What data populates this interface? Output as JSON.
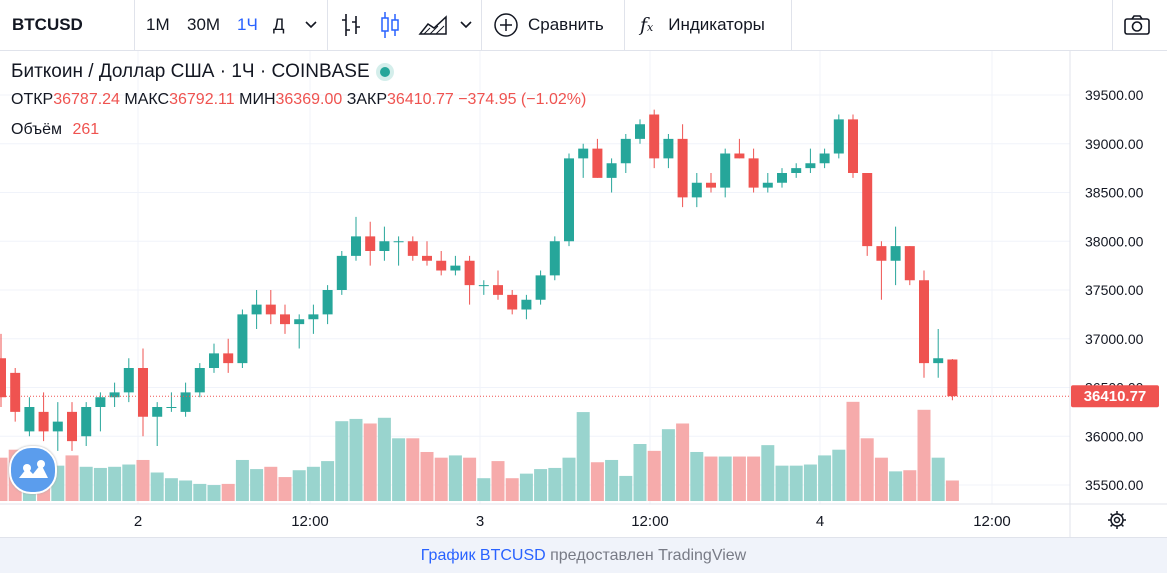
{
  "toolbar": {
    "symbol": "BTCUSD",
    "intervals": [
      "1М",
      "30М",
      "1Ч",
      "Д"
    ],
    "active_interval": "1Ч",
    "compare_label": "Сравнить",
    "indicators_label": "Индикаторы"
  },
  "legend": {
    "title": "Биткоин / Доллар США · 1Ч · COINBASE",
    "open_label": "ОТКР",
    "open": "36787.24",
    "high_label": "МАКС",
    "high": "36792.11",
    "low_label": "МИН",
    "low": "36369.00",
    "close_label": "ЗАКР",
    "close": "36410.77",
    "change": "−374.95 (−1.02%)",
    "volume_label": "Объём",
    "volume": "261"
  },
  "price_axis": {
    "labels": [
      "39500.00",
      "39000.00",
      "38500.00",
      "38000.00",
      "37500.00",
      "37000.00",
      "36500.00",
      "36000.00",
      "35500.00"
    ],
    "last_price": "36410.77"
  },
  "time_axis": {
    "labels": [
      "2",
      "12:00",
      "3",
      "12:00",
      "4",
      "12:00"
    ]
  },
  "footer": {
    "link_text": "График BTCUSD",
    "rest_text": " предоставлен TradingView"
  },
  "colors": {
    "up": "#26a69a",
    "down": "#ef5350",
    "up_volume": "#99d4ce",
    "down_volume": "#f6abab",
    "accent": "#2962ff"
  },
  "chart_data": {
    "type": "candlestick",
    "interval": "1H",
    "ylim": [
      35300,
      39800
    ],
    "candles": [
      {
        "o": 36800,
        "h": 37050,
        "l": 36300,
        "c": 36400,
        "v": 0.38
      },
      {
        "o": 36650,
        "h": 36700,
        "l": 36150,
        "c": 36250,
        "v": 0.45
      },
      {
        "o": 36050,
        "h": 36400,
        "l": 36000,
        "c": 36300,
        "v": 0.28
      },
      {
        "o": 36250,
        "h": 36450,
        "l": 35950,
        "c": 36050,
        "v": 0.37
      },
      {
        "o": 36050,
        "h": 36350,
        "l": 35850,
        "c": 36150,
        "v": 0.31
      },
      {
        "o": 36250,
        "h": 36350,
        "l": 35850,
        "c": 35950,
        "v": 0.4
      },
      {
        "o": 36000,
        "h": 36350,
        "l": 35900,
        "c": 36300,
        "v": 0.3
      },
      {
        "o": 36300,
        "h": 36450,
        "l": 36050,
        "c": 36400,
        "v": 0.29
      },
      {
        "o": 36400,
        "h": 36550,
        "l": 36300,
        "c": 36450,
        "v": 0.3
      },
      {
        "o": 36450,
        "h": 36800,
        "l": 36350,
        "c": 36700,
        "v": 0.32
      },
      {
        "o": 36700,
        "h": 36900,
        "l": 36000,
        "c": 36200,
        "v": 0.36
      },
      {
        "o": 36200,
        "h": 36350,
        "l": 35900,
        "c": 36300,
        "v": 0.25
      },
      {
        "o": 36300,
        "h": 36450,
        "l": 36250,
        "c": 36300,
        "v": 0.2
      },
      {
        "o": 36250,
        "h": 36550,
        "l": 36200,
        "c": 36450,
        "v": 0.18
      },
      {
        "o": 36450,
        "h": 36750,
        "l": 36400,
        "c": 36700,
        "v": 0.15
      },
      {
        "o": 36700,
        "h": 36950,
        "l": 36650,
        "c": 36850,
        "v": 0.14
      },
      {
        "o": 36850,
        "h": 37000,
        "l": 36650,
        "c": 36750,
        "v": 0.15
      },
      {
        "o": 36750,
        "h": 37300,
        "l": 36700,
        "c": 37250,
        "v": 0.36
      },
      {
        "o": 37250,
        "h": 37500,
        "l": 37100,
        "c": 37350,
        "v": 0.28
      },
      {
        "o": 37350,
        "h": 37500,
        "l": 37150,
        "c": 37250,
        "v": 0.3
      },
      {
        "o": 37250,
        "h": 37350,
        "l": 37050,
        "c": 37150,
        "v": 0.21
      },
      {
        "o": 37150,
        "h": 37250,
        "l": 36900,
        "c": 37200,
        "v": 0.27
      },
      {
        "o": 37200,
        "h": 37350,
        "l": 37050,
        "c": 37250,
        "v": 0.3
      },
      {
        "o": 37250,
        "h": 37550,
        "l": 37150,
        "c": 37500,
        "v": 0.35
      },
      {
        "o": 37500,
        "h": 37900,
        "l": 37450,
        "c": 37850,
        "v": 0.7
      },
      {
        "o": 37850,
        "h": 38250,
        "l": 37800,
        "c": 38050,
        "v": 0.72
      },
      {
        "o": 38050,
        "h": 38200,
        "l": 37750,
        "c": 37900,
        "v": 0.68
      },
      {
        "o": 37900,
        "h": 38150,
        "l": 37800,
        "c": 38000,
        "v": 0.73
      },
      {
        "o": 38000,
        "h": 38050,
        "l": 37750,
        "c": 38000,
        "v": 0.55
      },
      {
        "o": 38000,
        "h": 38050,
        "l": 37800,
        "c": 37850,
        "v": 0.55
      },
      {
        "o": 37850,
        "h": 38000,
        "l": 37750,
        "c": 37800,
        "v": 0.43
      },
      {
        "o": 37800,
        "h": 37900,
        "l": 37650,
        "c": 37700,
        "v": 0.38
      },
      {
        "o": 37700,
        "h": 37850,
        "l": 37650,
        "c": 37750,
        "v": 0.4
      },
      {
        "o": 37800,
        "h": 37850,
        "l": 37350,
        "c": 37550,
        "v": 0.38
      },
      {
        "o": 37550,
        "h": 37600,
        "l": 37450,
        "c": 37550,
        "v": 0.2
      },
      {
        "o": 37550,
        "h": 37700,
        "l": 37400,
        "c": 37450,
        "v": 0.35
      },
      {
        "o": 37450,
        "h": 37500,
        "l": 37250,
        "c": 37300,
        "v": 0.2
      },
      {
        "o": 37300,
        "h": 37450,
        "l": 37200,
        "c": 37400,
        "v": 0.24
      },
      {
        "o": 37400,
        "h": 37700,
        "l": 37350,
        "c": 37650,
        "v": 0.28
      },
      {
        "o": 37650,
        "h": 38050,
        "l": 37600,
        "c": 38000,
        "v": 0.29
      },
      {
        "o": 38000,
        "h": 38900,
        "l": 37950,
        "c": 38850,
        "v": 0.38
      },
      {
        "o": 38850,
        "h": 39000,
        "l": 38650,
        "c": 38950,
        "v": 0.78
      },
      {
        "o": 38950,
        "h": 39050,
        "l": 38650,
        "c": 38650,
        "v": 0.34
      },
      {
        "o": 38650,
        "h": 38850,
        "l": 38500,
        "c": 38800,
        "v": 0.36
      },
      {
        "o": 38800,
        "h": 39100,
        "l": 38700,
        "c": 39050,
        "v": 0.22
      },
      {
        "o": 39050,
        "h": 39250,
        "l": 39000,
        "c": 39200,
        "v": 0.5
      },
      {
        "o": 39300,
        "h": 39350,
        "l": 38750,
        "c": 38850,
        "v": 0.44
      },
      {
        "o": 38850,
        "h": 39100,
        "l": 38750,
        "c": 39050,
        "v": 0.63
      },
      {
        "o": 39050,
        "h": 39200,
        "l": 38350,
        "c": 38450,
        "v": 0.68
      },
      {
        "o": 38450,
        "h": 38700,
        "l": 38350,
        "c": 38600,
        "v": 0.43
      },
      {
        "o": 38600,
        "h": 38700,
        "l": 38500,
        "c": 38550,
        "v": 0.39
      },
      {
        "o": 38550,
        "h": 38950,
        "l": 38450,
        "c": 38900,
        "v": 0.39
      },
      {
        "o": 38900,
        "h": 39050,
        "l": 38850,
        "c": 38850,
        "v": 0.39
      },
      {
        "o": 38850,
        "h": 38950,
        "l": 38500,
        "c": 38550,
        "v": 0.39
      },
      {
        "o": 38550,
        "h": 38700,
        "l": 38500,
        "c": 38600,
        "v": 0.49
      },
      {
        "o": 38600,
        "h": 38750,
        "l": 38550,
        "c": 38700,
        "v": 0.31
      },
      {
        "o": 38700,
        "h": 38800,
        "l": 38650,
        "c": 38750,
        "v": 0.31
      },
      {
        "o": 38750,
        "h": 38950,
        "l": 38700,
        "c": 38800,
        "v": 0.32
      },
      {
        "o": 38800,
        "h": 38950,
        "l": 38750,
        "c": 38900,
        "v": 0.4
      },
      {
        "o": 38900,
        "h": 39300,
        "l": 38850,
        "c": 39250,
        "v": 0.45
      },
      {
        "o": 39250,
        "h": 39300,
        "l": 38650,
        "c": 38700,
        "v": 0.87
      },
      {
        "o": 38700,
        "h": 38700,
        "l": 37850,
        "c": 37950,
        "v": 0.55
      },
      {
        "o": 37950,
        "h": 38000,
        "l": 37400,
        "c": 37800,
        "v": 0.38
      },
      {
        "o": 37800,
        "h": 38150,
        "l": 37550,
        "c": 37950,
        "v": 0.26
      },
      {
        "o": 37950,
        "h": 37950,
        "l": 37550,
        "c": 37600,
        "v": 0.27
      },
      {
        "o": 37600,
        "h": 37700,
        "l": 36600,
        "c": 36750,
        "v": 0.8
      },
      {
        "o": 36750,
        "h": 37100,
        "l": 36600,
        "c": 36800,
        "v": 0.38
      },
      {
        "o": 36787.24,
        "h": 36792.11,
        "l": 36369.0,
        "c": 36410.77,
        "v": 0.18
      }
    ]
  }
}
